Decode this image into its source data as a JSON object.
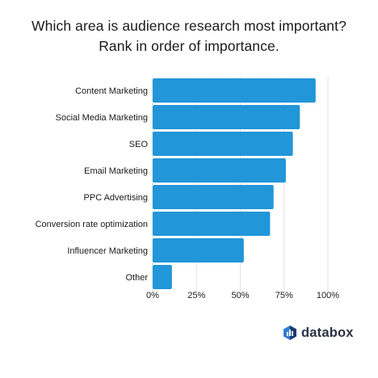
{
  "title": {
    "line1": "Which area is audience research most important?",
    "line2": "Rank in order of importance."
  },
  "brand": {
    "name": "databox",
    "logo_icon": "databox-logo-icon",
    "logo_colors": [
      "#2f7fd3",
      "#1b3b73"
    ]
  },
  "colors": {
    "bar": "#2196d8",
    "grid": "#e3e3e3"
  },
  "chart_data": {
    "type": "bar",
    "orientation": "horizontal",
    "title": "Which area is audience research most important? Rank in order of importance.",
    "xlabel": "",
    "ylabel": "",
    "categories": [
      "Content Marketing",
      "Social Media Marketing",
      "SEO",
      "Email Marketing",
      "PPC Advertising",
      "Conversion rate optimization",
      "Influencer Marketing",
      "Other"
    ],
    "values": [
      93,
      84,
      80,
      76,
      69,
      67,
      52,
      11
    ],
    "xlim": [
      0,
      100
    ],
    "xticks": [
      "0%",
      "25%",
      "50%",
      "75%",
      "100%"
    ],
    "xtick_values": [
      0,
      25,
      50,
      75,
      100
    ],
    "grid": true,
    "legend": "none"
  }
}
